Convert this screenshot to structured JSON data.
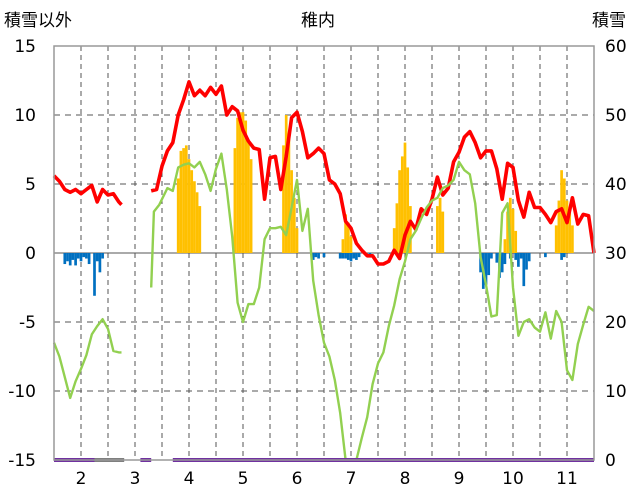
{
  "chart_data": {
    "type": "line",
    "title": "稚内",
    "left_axis_label": "積雪以外",
    "right_axis_label": "積雪",
    "left_ylim": [
      -15,
      15
    ],
    "right_ylim": [
      0,
      60
    ],
    "left_ticks": [
      "15",
      "10",
      "5",
      "0",
      "-5",
      "-10",
      "-15"
    ],
    "right_ticks": [
      "60",
      "50",
      "40",
      "30",
      "20",
      "10",
      "0"
    ],
    "x_ticks": [
      "2",
      "3",
      "4",
      "5",
      "6",
      "7",
      "8",
      "9",
      "10",
      "11"
    ],
    "x_range": [
      1.5,
      11.5
    ],
    "grid": true,
    "colors": {
      "red_line": "#ff0000",
      "green_line": "#92d050",
      "positive_bar": "#ffc000",
      "negative_bar": "#0070c0",
      "snow_line": "#7030a0",
      "snow_gap": "#7f7f7f"
    },
    "series": [
      {
        "style": "line",
        "color": "#ff0000",
        "axis": "left",
        "points": [
          [
            1.5,
            5.6
          ],
          [
            1.6,
            5.2
          ],
          [
            1.7,
            4.6
          ],
          [
            1.8,
            4.4
          ],
          [
            1.9,
            4.6
          ],
          [
            2.0,
            4.3
          ],
          [
            2.1,
            4.6
          ],
          [
            2.2,
            4.9
          ],
          [
            2.3,
            3.7
          ],
          [
            2.4,
            4.6
          ],
          [
            2.5,
            4.2
          ],
          [
            2.6,
            4.3
          ],
          [
            2.7,
            3.7
          ],
          [
            2.75,
            3.5
          ],
          null,
          [
            3.3,
            4.5
          ],
          [
            3.4,
            4.6
          ],
          [
            3.5,
            6.3
          ],
          [
            3.6,
            7.4
          ],
          [
            3.7,
            8.0
          ],
          [
            3.8,
            10.0
          ],
          [
            3.9,
            11.1
          ],
          [
            4.0,
            12.4
          ],
          [
            4.1,
            11.4
          ],
          [
            4.2,
            11.8
          ],
          [
            4.3,
            11.4
          ],
          [
            4.4,
            12.0
          ],
          [
            4.5,
            11.5
          ],
          [
            4.6,
            12.1
          ],
          [
            4.7,
            10.0
          ],
          [
            4.8,
            10.6
          ],
          [
            4.9,
            10.3
          ],
          [
            5.0,
            8.9
          ],
          [
            5.1,
            8.1
          ],
          [
            5.2,
            7.6
          ],
          [
            5.3,
            7.5
          ],
          [
            5.4,
            3.9
          ],
          [
            5.5,
            6.9
          ],
          [
            5.6,
            7.0
          ],
          [
            5.7,
            4.6
          ],
          [
            5.8,
            7.0
          ],
          [
            5.9,
            9.8
          ],
          [
            6.0,
            10.2
          ],
          [
            6.1,
            8.8
          ],
          [
            6.2,
            6.9
          ],
          [
            6.3,
            7.2
          ],
          [
            6.4,
            7.6
          ],
          [
            6.5,
            7.2
          ],
          [
            6.6,
            5.3
          ],
          [
            6.7,
            5.0
          ],
          [
            6.8,
            4.3
          ],
          [
            6.9,
            2.3
          ],
          [
            7.0,
            1.8
          ],
          [
            7.1,
            0.7
          ],
          [
            7.2,
            0.2
          ],
          [
            7.3,
            -0.2
          ],
          [
            7.4,
            -0.2
          ],
          [
            7.5,
            -0.8
          ],
          [
            7.6,
            -0.8
          ],
          [
            7.7,
            -0.6
          ],
          [
            7.8,
            0.2
          ],
          [
            7.9,
            -0.4
          ],
          [
            8.0,
            1.3
          ],
          [
            8.1,
            2.3
          ],
          [
            8.2,
            1.7
          ],
          [
            8.3,
            3.2
          ],
          [
            8.4,
            2.8
          ],
          [
            8.5,
            3.9
          ],
          [
            8.6,
            5.5
          ],
          [
            8.7,
            4.2
          ],
          [
            8.8,
            4.7
          ],
          [
            8.9,
            6.6
          ],
          [
            9.0,
            7.3
          ],
          [
            9.1,
            8.4
          ],
          [
            9.2,
            8.8
          ],
          [
            9.3,
            8.0
          ],
          [
            9.4,
            6.9
          ],
          [
            9.5,
            7.4
          ],
          [
            9.6,
            7.4
          ],
          [
            9.7,
            6.1
          ],
          [
            9.8,
            3.9
          ],
          [
            9.9,
            6.5
          ],
          [
            10.0,
            6.2
          ],
          [
            10.1,
            3.8
          ],
          [
            10.2,
            2.6
          ],
          [
            10.3,
            4.4
          ],
          [
            10.4,
            3.3
          ],
          [
            10.5,
            3.3
          ],
          [
            10.6,
            2.8
          ],
          [
            10.7,
            2.2
          ],
          [
            10.8,
            3.0
          ],
          [
            10.9,
            3.2
          ],
          [
            11.0,
            2.2
          ],
          [
            11.1,
            4.0
          ],
          [
            11.2,
            2.1
          ],
          [
            11.3,
            2.8
          ],
          [
            11.4,
            2.7
          ],
          [
            11.5,
            0.0
          ]
        ]
      },
      {
        "style": "line",
        "color": "#92d050",
        "axis": "left",
        "points": [
          [
            1.5,
            -6.5
          ],
          [
            1.6,
            -7.5
          ],
          [
            1.7,
            -9.0
          ],
          [
            1.8,
            -10.5
          ],
          [
            1.9,
            -9.3
          ],
          [
            2.0,
            -8.4
          ],
          [
            2.1,
            -7.4
          ],
          [
            2.2,
            -5.9
          ],
          [
            2.3,
            -5.3
          ],
          [
            2.4,
            -4.8
          ],
          [
            2.5,
            -5.5
          ],
          [
            2.6,
            -7.1
          ],
          [
            2.7,
            -7.2
          ],
          [
            2.75,
            -7.2
          ],
          null,
          [
            3.3,
            -2.5
          ],
          [
            3.35,
            3.0
          ],
          [
            3.45,
            3.5
          ],
          [
            3.6,
            4.7
          ],
          [
            3.7,
            4.5
          ],
          [
            3.8,
            6.2
          ],
          [
            3.9,
            6.4
          ],
          [
            4.0,
            6.5
          ],
          [
            4.1,
            6.2
          ],
          [
            4.2,
            6.6
          ],
          [
            4.3,
            5.7
          ],
          [
            4.4,
            4.5
          ],
          [
            4.5,
            6.1
          ],
          [
            4.6,
            7.2
          ],
          [
            4.7,
            4.6
          ],
          [
            4.8,
            1.2
          ],
          [
            4.9,
            -3.6
          ],
          [
            5.0,
            -5.0
          ],
          [
            5.1,
            -3.7
          ],
          [
            5.2,
            -3.7
          ],
          [
            5.3,
            -2.5
          ],
          [
            5.4,
            1.0
          ],
          [
            5.5,
            1.8
          ],
          [
            5.6,
            1.8
          ],
          [
            5.7,
            1.9
          ],
          [
            5.8,
            1.3
          ],
          [
            5.9,
            3.3
          ],
          [
            6.0,
            5.3
          ],
          [
            6.1,
            1.6
          ],
          [
            6.2,
            3.2
          ],
          [
            6.3,
            -2.0
          ],
          [
            6.4,
            -4.5
          ],
          [
            6.5,
            -6.5
          ],
          [
            6.6,
            -7.5
          ],
          [
            6.7,
            -9.2
          ],
          [
            6.8,
            -11.6
          ],
          [
            6.9,
            -15.0
          ],
          [
            7.0,
            -15.0
          ],
          [
            7.1,
            -15.0
          ],
          [
            7.2,
            -13.4
          ],
          [
            7.3,
            -11.9
          ],
          [
            7.4,
            -9.5
          ],
          [
            7.5,
            -8.0
          ],
          [
            7.6,
            -7.2
          ],
          [
            7.7,
            -5.3
          ],
          [
            7.8,
            -3.8
          ],
          [
            7.9,
            -1.9
          ],
          [
            8.0,
            -0.6
          ],
          [
            8.1,
            1.0
          ],
          [
            8.2,
            1.6
          ],
          [
            8.3,
            2.5
          ],
          [
            8.4,
            3.3
          ],
          [
            8.5,
            3.8
          ],
          [
            8.6,
            4.0
          ],
          [
            8.7,
            4.7
          ],
          [
            8.8,
            4.9
          ],
          [
            8.9,
            5.3
          ],
          [
            9.0,
            6.6
          ],
          [
            9.1,
            6.0
          ],
          [
            9.2,
            5.7
          ],
          [
            9.3,
            3.6
          ],
          [
            9.4,
            -0.3
          ],
          [
            9.5,
            -2.3
          ],
          [
            9.6,
            -4.6
          ],
          [
            9.7,
            -4.5
          ],
          [
            9.8,
            2.9
          ],
          [
            9.9,
            3.6
          ],
          [
            10.0,
            -2.5
          ],
          [
            10.1,
            -6.0
          ],
          [
            10.2,
            -5.0
          ],
          [
            10.3,
            -4.8
          ],
          [
            10.4,
            -5.4
          ],
          [
            10.5,
            -5.7
          ],
          [
            10.6,
            -4.3
          ],
          [
            10.7,
            -6.2
          ],
          [
            10.8,
            -4.2
          ],
          [
            10.9,
            -5.0
          ],
          [
            11.0,
            -8.5
          ],
          [
            11.1,
            -9.2
          ],
          [
            11.2,
            -6.6
          ],
          [
            11.3,
            -5.2
          ],
          [
            11.4,
            -3.9
          ],
          [
            11.5,
            -4.2
          ]
        ]
      },
      {
        "style": "bar",
        "color": "#ffc000",
        "axis": "left",
        "width": 0.05,
        "points": [
          [
            3.8,
            5.4
          ],
          [
            3.85,
            7.4
          ],
          [
            3.9,
            7.6
          ],
          [
            3.95,
            7.8
          ],
          [
            4.0,
            6.8
          ],
          [
            4.05,
            6.0
          ],
          [
            4.1,
            5.2
          ],
          [
            4.15,
            4.4
          ],
          [
            4.2,
            3.4
          ],
          [
            4.85,
            7.6
          ],
          [
            4.9,
            9.8
          ],
          [
            4.95,
            10.2
          ],
          [
            5.0,
            10.2
          ],
          [
            5.05,
            9.6
          ],
          [
            5.1,
            8.0
          ],
          [
            5.15,
            6.8
          ],
          [
            5.75,
            7.8
          ],
          [
            5.8,
            10.0
          ],
          [
            5.85,
            8.6
          ],
          [
            5.9,
            6.0
          ],
          [
            5.95,
            4.0
          ],
          [
            6.0,
            1.8
          ],
          [
            6.85,
            1.0
          ],
          [
            6.9,
            2.8
          ],
          [
            6.95,
            2.2
          ],
          [
            7.0,
            1.2
          ],
          [
            7.8,
            1.8
          ],
          [
            7.85,
            3.6
          ],
          [
            7.9,
            6.0
          ],
          [
            7.95,
            7.0
          ],
          [
            8.0,
            8.0
          ],
          [
            8.05,
            6.2
          ],
          [
            8.1,
            3.4
          ],
          [
            8.6,
            3.4
          ],
          [
            8.65,
            4.0
          ],
          [
            8.7,
            3.0
          ],
          [
            9.85,
            1.0
          ],
          [
            9.9,
            3.0
          ],
          [
            9.95,
            4.0
          ],
          [
            10.0,
            3.2
          ],
          [
            10.05,
            1.6
          ],
          [
            10.8,
            2.0
          ],
          [
            10.85,
            3.8
          ],
          [
            10.9,
            6.0
          ],
          [
            10.95,
            5.4
          ],
          [
            11.0,
            3.8
          ],
          [
            11.05,
            3.0
          ],
          [
            11.1,
            2.0
          ]
        ]
      },
      {
        "style": "bar",
        "color": "#0070c0",
        "axis": "left",
        "width": 0.05,
        "points": [
          [
            1.7,
            -0.8
          ],
          [
            1.75,
            -0.6
          ],
          [
            1.8,
            -0.9
          ],
          [
            1.85,
            -0.5
          ],
          [
            1.9,
            -0.9
          ],
          [
            1.95,
            -0.4
          ],
          [
            2.0,
            -0.6
          ],
          [
            2.05,
            -0.3
          ],
          [
            2.1,
            -0.4
          ],
          [
            2.15,
            -0.8
          ],
          [
            2.25,
            -3.1
          ],
          [
            2.3,
            -0.6
          ],
          [
            2.35,
            -1.4
          ],
          [
            2.4,
            -0.4
          ],
          [
            6.3,
            -0.5
          ],
          [
            6.35,
            -0.3
          ],
          [
            6.4,
            -0.4
          ],
          [
            6.5,
            -0.3
          ],
          [
            6.8,
            -0.4
          ],
          [
            6.85,
            -0.4
          ],
          [
            6.9,
            -0.4
          ],
          [
            6.95,
            -0.5
          ],
          [
            7.0,
            -0.6
          ],
          [
            7.05,
            -0.4
          ],
          [
            7.1,
            -0.5
          ],
          [
            7.15,
            -0.3
          ],
          [
            7.35,
            -0.2
          ],
          [
            9.4,
            -1.4
          ],
          [
            9.45,
            -2.6
          ],
          [
            9.5,
            -2.3
          ],
          [
            9.55,
            -1.6
          ],
          [
            9.6,
            -0.4
          ],
          [
            9.7,
            -0.7
          ],
          [
            9.75,
            -1.8
          ],
          [
            9.8,
            -1.4
          ],
          [
            9.85,
            -0.8
          ],
          [
            9.95,
            -0.4
          ],
          [
            10.05,
            -0.5
          ],
          [
            10.1,
            -1.0
          ],
          [
            10.15,
            -0.4
          ],
          [
            10.2,
            -2.4
          ],
          [
            10.25,
            -1.2
          ],
          [
            10.3,
            -0.6
          ],
          [
            10.6,
            -0.3
          ],
          [
            10.9,
            -0.5
          ],
          [
            10.95,
            -0.3
          ]
        ]
      },
      {
        "style": "line",
        "color": "#7030a0",
        "axis": "right",
        "points": [
          [
            1.5,
            0
          ],
          [
            2.25,
            0
          ],
          null,
          [
            3.1,
            0
          ],
          [
            3.3,
            0
          ],
          null,
          [
            3.7,
            0
          ],
          [
            11.5,
            0
          ]
        ]
      },
      {
        "style": "line",
        "color": "#7f7f7f",
        "axis": "right",
        "points": [
          [
            2.25,
            0
          ],
          [
            2.8,
            0
          ]
        ]
      }
    ]
  }
}
